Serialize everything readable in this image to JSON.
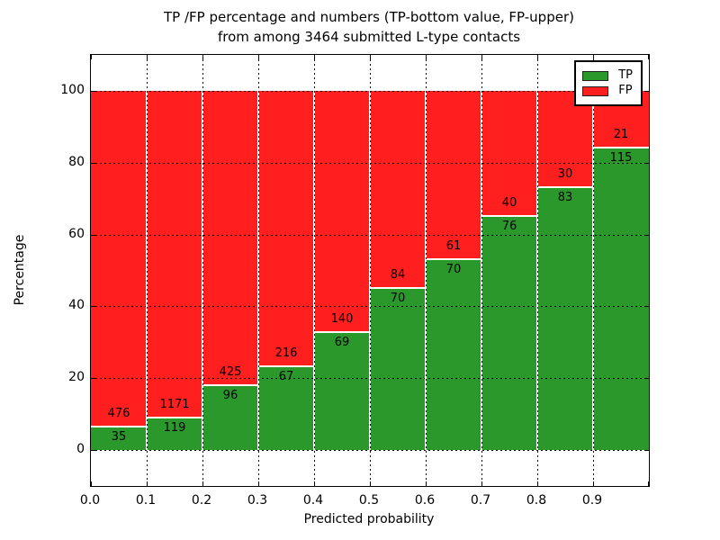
{
  "title": {
    "line1": "TP /FP percentage and numbers (TP-bottom value, FP-upper)",
    "line2": "from among 3464 submitted L-type contacts"
  },
  "axes": {
    "ylabel": "Percentage",
    "xlabel": "Predicted probability",
    "ytick_labels": [
      "0",
      "20",
      "40",
      "60",
      "80",
      "100"
    ],
    "ytick_values": [
      0,
      20,
      40,
      60,
      80,
      100
    ],
    "xtick_labels": [
      "0.0",
      "0.1",
      "0.2",
      "0.3",
      "0.4",
      "0.5",
      "0.6",
      "0.7",
      "0.8",
      "0.9"
    ],
    "ylim": [
      -10,
      110
    ],
    "grid": "dotted"
  },
  "legend": {
    "position": "upper right",
    "items": [
      {
        "label": "TP",
        "color": "#2a982a"
      },
      {
        "label": "FP",
        "color": "#ff1f1f"
      }
    ]
  },
  "colors": {
    "tp": "#2a982a",
    "fp": "#ff1f1f",
    "bar_edge": "#ffffff",
    "grid": "#000000",
    "background": "#ffffff"
  },
  "chart_data": {
    "type": "bar",
    "stacked": true,
    "normalized_to_percent": 100,
    "title": "TP /FP percentage and numbers (TP-bottom value, FP-upper) from among 3464 submitted L-type contacts",
    "xlabel": "Predicted probability",
    "ylabel": "Percentage",
    "total_contacts": 3464,
    "categories": [
      "0.0",
      "0.1",
      "0.2",
      "0.3",
      "0.4",
      "0.5",
      "0.6",
      "0.7",
      "0.8",
      "0.9"
    ],
    "series": [
      {
        "name": "TP",
        "values": [
          35,
          119,
          96,
          67,
          69,
          70,
          70,
          76,
          83,
          115
        ]
      },
      {
        "name": "FP",
        "values": [
          476,
          1171,
          425,
          216,
          140,
          84,
          61,
          40,
          30,
          21
        ]
      }
    ],
    "tp_percent_of_bin": [
      6.85,
      9.22,
      18.43,
      23.67,
      33.01,
      45.45,
      53.44,
      65.52,
      73.45,
      84.56
    ],
    "ylim": [
      -10,
      110
    ],
    "legend_position": "upper right"
  }
}
